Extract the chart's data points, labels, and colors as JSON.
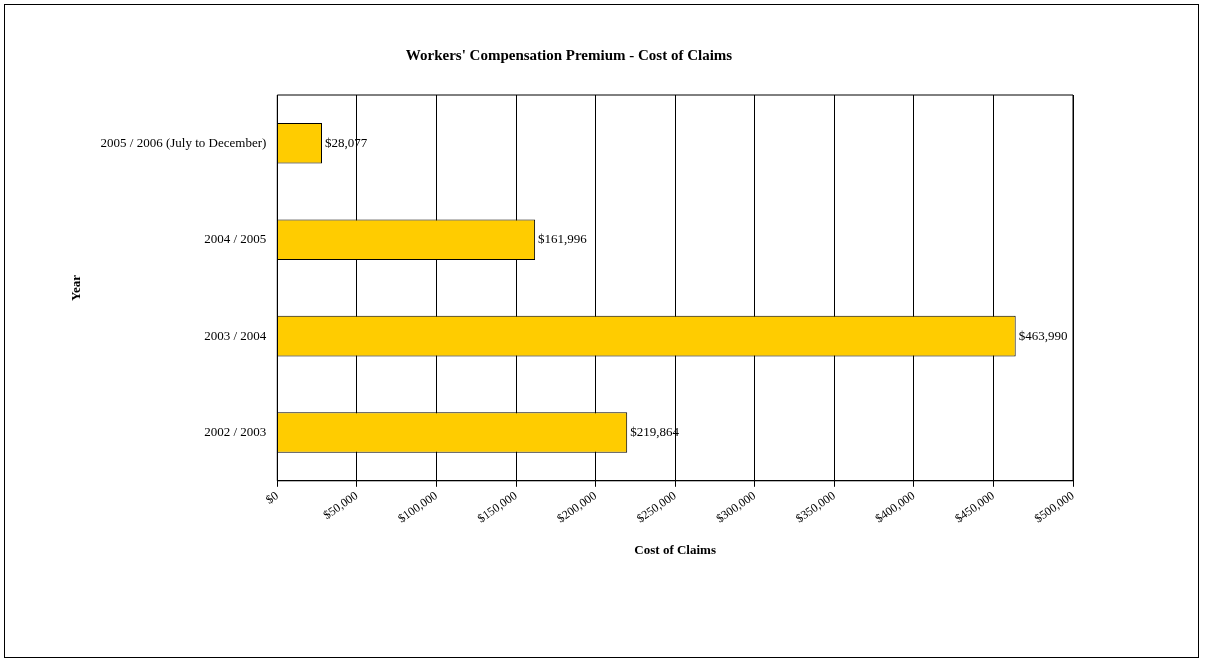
{
  "chart_data": {
    "type": "bar",
    "orientation": "horizontal",
    "title": "Workers' Compensation Premium - Cost of Claims",
    "xlabel": "Cost of Claims",
    "ylabel": "Year",
    "categories": [
      "2005 / 2006 (July to December)",
      "2004 / 2005",
      "2003 / 2004",
      "2002 / 2003"
    ],
    "values": [
      28077,
      161996,
      463990,
      219864
    ],
    "value_labels": [
      "$28,077",
      "$161,996",
      "$463,990",
      "$219,864"
    ],
    "color": "#ffcc00",
    "xlim": [
      0,
      500000
    ],
    "xticks": [
      {
        "value": 0,
        "label": "$0"
      },
      {
        "value": 50000,
        "label": "$50,000"
      },
      {
        "value": 100000,
        "label": "$100,000"
      },
      {
        "value": 150000,
        "label": "$150,000"
      },
      {
        "value": 200000,
        "label": "$200,000"
      },
      {
        "value": 250000,
        "label": "$250,000"
      },
      {
        "value": 300000,
        "label": "$300,000"
      },
      {
        "value": 350000,
        "label": "$350,000"
      },
      {
        "value": 400000,
        "label": "$400,000"
      },
      {
        "value": 450000,
        "label": "$450,000"
      },
      {
        "value": 500000,
        "label": "$500,000"
      }
    ],
    "grid": "x",
    "legend": false
  }
}
